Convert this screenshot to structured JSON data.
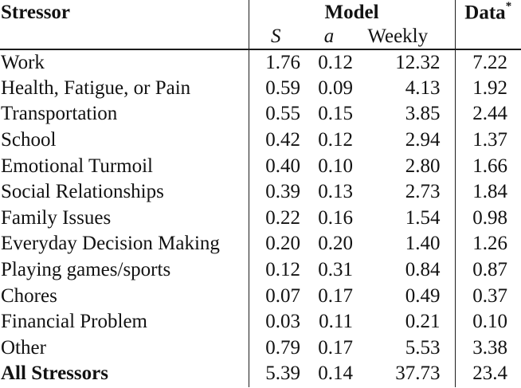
{
  "table": {
    "header": {
      "stressor_label": "Stressor",
      "model_label": "Model",
      "data_label": "Data",
      "data_superscript": "*",
      "sub_columns": [
        "S",
        "a",
        "Weekly"
      ]
    },
    "rows": [
      {
        "stressor": "Work",
        "s": "1.76",
        "a": "0.12",
        "weekly": "12.32",
        "data": "7.22",
        "bold": false
      },
      {
        "stressor": "Health, Fatigue, or Pain",
        "s": "0.59",
        "a": "0.09",
        "weekly": "4.13",
        "data": "1.92",
        "bold": false
      },
      {
        "stressor": "Transportation",
        "s": "0.55",
        "a": "0.15",
        "weekly": "3.85",
        "data": "2.44",
        "bold": false
      },
      {
        "stressor": "School",
        "s": "0.42",
        "a": "0.12",
        "weekly": "2.94",
        "data": "1.37",
        "bold": false
      },
      {
        "stressor": "Emotional Turmoil",
        "s": "0.40",
        "a": "0.10",
        "weekly": "2.80",
        "data": "1.66",
        "bold": false
      },
      {
        "stressor": "Social Relationships",
        "s": "0.39",
        "a": "0.13",
        "weekly": "2.73",
        "data": "1.84",
        "bold": false
      },
      {
        "stressor": "Family Issues",
        "s": "0.22",
        "a": "0.16",
        "weekly": "1.54",
        "data": "0.98",
        "bold": false
      },
      {
        "stressor": "Everyday Decision Making",
        "s": "0.20",
        "a": "0.20",
        "weekly": "1.40",
        "data": "1.26",
        "bold": false
      },
      {
        "stressor": "Playing games/sports",
        "s": "0.12",
        "a": "0.31",
        "weekly": "0.84",
        "data": "0.87",
        "bold": false
      },
      {
        "stressor": "Chores",
        "s": "0.07",
        "a": "0.17",
        "weekly": "0.49",
        "data": "0.37",
        "bold": false
      },
      {
        "stressor": "Financial Problem",
        "s": "0.03",
        "a": "0.11",
        "weekly": "0.21",
        "data": "0.10",
        "bold": false
      },
      {
        "stressor": "Other",
        "s": "0.79",
        "a": "0.17",
        "weekly": "5.53",
        "data": "3.38",
        "bold": false
      },
      {
        "stressor": "All Stressors",
        "s": "5.39",
        "a": "0.14",
        "weekly": "37.73",
        "data": "23.4",
        "bold": true
      }
    ]
  }
}
